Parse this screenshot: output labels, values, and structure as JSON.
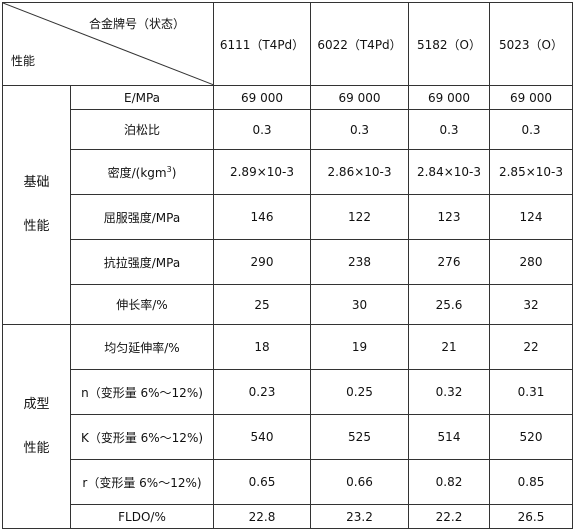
{
  "header": {
    "corner_top": "合金牌号（状态）",
    "corner_bottom": "性能",
    "alloys": [
      "6111（T4Pd）",
      "6022（T4Pd）",
      "5182（O）",
      "5023（O）"
    ]
  },
  "groups": [
    {
      "name_line1": "基础",
      "name_line2": "性能",
      "rows": [
        {
          "label": "E/MPa",
          "values": [
            "69 000",
            "69 000",
            "69 000",
            "69 000"
          ]
        },
        {
          "label": "泊松比",
          "values": [
            "0.3",
            "0.3",
            "0.3",
            "0.3"
          ]
        },
        {
          "label": "密度/(kgm",
          "label_sup": "3",
          "label_tail": ")",
          "values": [
            "2.89×10-3",
            "2.86×10-3",
            "2.84×10-3",
            "2.85×10-3"
          ]
        },
        {
          "label": "屈服强度/MPa",
          "values": [
            "146",
            "122",
            "123",
            "124"
          ]
        },
        {
          "label": "抗拉强度/MPa",
          "values": [
            "290",
            "238",
            "276",
            "280"
          ]
        },
        {
          "label": "伸长率/%",
          "values": [
            "25",
            "30",
            "25.6",
            "32"
          ]
        }
      ]
    },
    {
      "name_line1": "成型",
      "name_line2": "性能",
      "rows": [
        {
          "label": "均匀延伸率/%",
          "values": [
            "18",
            "19",
            "21",
            "22"
          ]
        },
        {
          "label": "n（变形量 6%～12%)",
          "values": [
            "0.23",
            "0.25",
            "0.32",
            "0.31"
          ]
        },
        {
          "label": "K（变形量 6%～12%)",
          "values": [
            "540",
            "525",
            "514",
            "520"
          ]
        },
        {
          "label": "r（变形量 6%～12%)",
          "values": [
            "0.65",
            "0.66",
            "0.82",
            "0.85"
          ]
        },
        {
          "label": "FLDO/%",
          "values": [
            "22.8",
            "23.2",
            "22.2",
            "26.5"
          ]
        }
      ]
    }
  ]
}
